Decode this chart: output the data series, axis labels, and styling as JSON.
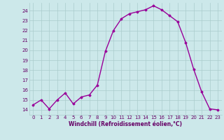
{
  "x": [
    0,
    1,
    2,
    3,
    4,
    5,
    6,
    7,
    8,
    9,
    10,
    11,
    12,
    13,
    14,
    15,
    16,
    17,
    18,
    19,
    20,
    21,
    22,
    23
  ],
  "y": [
    14.5,
    15.0,
    14.1,
    15.0,
    15.7,
    14.6,
    15.3,
    15.5,
    16.5,
    19.9,
    22.0,
    23.2,
    23.7,
    23.9,
    24.1,
    24.5,
    24.1,
    23.5,
    22.9,
    20.8,
    18.1,
    15.8,
    14.1,
    14.0
  ],
  "line_color": "#990099",
  "marker": "D",
  "marker_size": 1.5,
  "line_width": 1.0,
  "bg_color": "#cce8ea",
  "grid_color": "#aacccc",
  "tick_label_color": "#660066",
  "xlabel": "Windchill (Refroidissement éolien,°C)",
  "xlabel_color": "#660066",
  "ylim": [
    13.5,
    24.8
  ],
  "xlim": [
    -0.5,
    23.5
  ],
  "yticks": [
    14,
    15,
    16,
    17,
    18,
    19,
    20,
    21,
    22,
    23,
    24
  ],
  "xticks": [
    0,
    1,
    2,
    3,
    4,
    5,
    6,
    7,
    8,
    9,
    10,
    11,
    12,
    13,
    14,
    15,
    16,
    17,
    18,
    19,
    20,
    21,
    22,
    23
  ],
  "tick_fontsize": 5.0,
  "xlabel_fontsize": 5.5
}
